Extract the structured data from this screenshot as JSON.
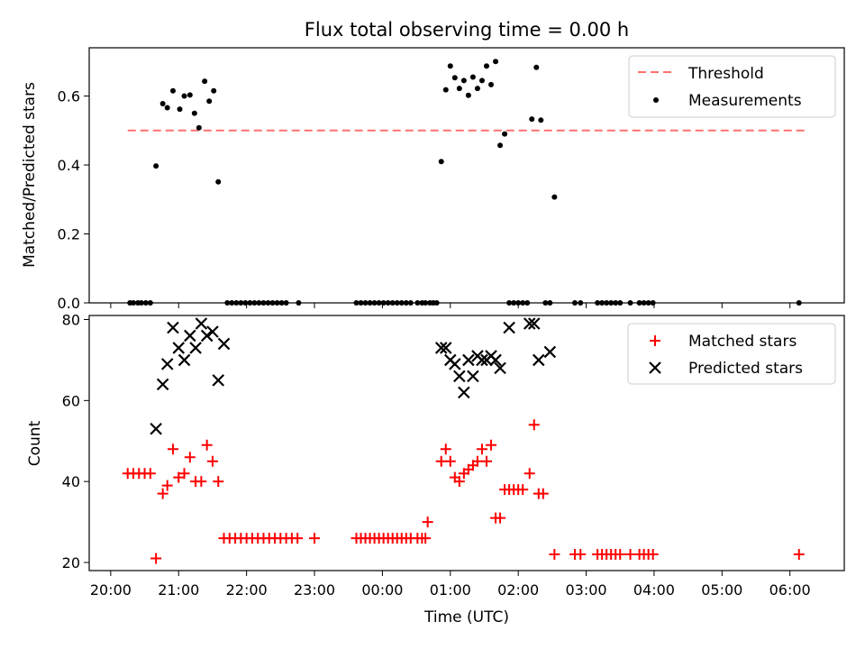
{
  "title": "Flux total observing time = 0.00 h",
  "colors": {
    "matched": "#ff0000",
    "predicted": "#000000",
    "threshold": "#ff7070",
    "measurement": "#000000"
  },
  "chart_data": [
    {
      "type": "scatter",
      "ylabel": "Matched/Predicted stars",
      "ylim": [
        0,
        0.74
      ],
      "yticks": [
        0.0,
        0.2,
        0.4,
        0.6
      ],
      "ytick_labels": [
        "0.0",
        "0.2",
        "0.4",
        "0.6"
      ],
      "xlim": [
        "20:00",
        "06:48"
      ],
      "legend": {
        "placement": "upper right",
        "entries": [
          "Threshold",
          "Measurements"
        ]
      },
      "threshold": {
        "name": "Threshold",
        "y": 0.5,
        "x_start": "20:15",
        "x_end": "06:15"
      },
      "series": [
        {
          "name": "Measurements",
          "points": [
            [
              "20:17",
              0.0
            ],
            [
              "20:20",
              0.0
            ],
            [
              "20:24",
              0.0
            ],
            [
              "20:27",
              0.0
            ],
            [
              "20:31",
              0.0
            ],
            [
              "20:35",
              0.0
            ],
            [
              "20:40",
              0.397
            ],
            [
              "20:46",
              0.578
            ],
            [
              "20:50",
              0.566
            ],
            [
              "20:55",
              0.615
            ],
            [
              "21:01",
              0.562
            ],
            [
              "21:05",
              0.6
            ],
            [
              "21:10",
              0.603
            ],
            [
              "21:14",
              0.55
            ],
            [
              "21:18",
              0.508
            ],
            [
              "21:23",
              0.643
            ],
            [
              "21:27",
              0.585
            ],
            [
              "21:31",
              0.615
            ],
            [
              "21:35",
              0.351
            ],
            [
              "21:43",
              0.0
            ],
            [
              "21:47",
              0.0
            ],
            [
              "21:51",
              0.0
            ],
            [
              "21:55",
              0.0
            ],
            [
              "21:59",
              0.0
            ],
            [
              "22:03",
              0.0
            ],
            [
              "22:07",
              0.0
            ],
            [
              "22:11",
              0.0
            ],
            [
              "22:15",
              0.0
            ],
            [
              "22:19",
              0.0
            ],
            [
              "22:23",
              0.0
            ],
            [
              "22:27",
              0.0
            ],
            [
              "22:31",
              0.0
            ],
            [
              "22:35",
              0.0
            ],
            [
              "22:46",
              0.0
            ],
            [
              "23:37",
              0.0
            ],
            [
              "23:41",
              0.0
            ],
            [
              "23:45",
              0.0
            ],
            [
              "23:49",
              0.0
            ],
            [
              "23:53",
              0.0
            ],
            [
              "23:57",
              0.0
            ],
            [
              "00:01",
              0.0
            ],
            [
              "00:05",
              0.0
            ],
            [
              "00:09",
              0.0
            ],
            [
              "00:13",
              0.0
            ],
            [
              "00:17",
              0.0
            ],
            [
              "00:21",
              0.0
            ],
            [
              "00:25",
              0.0
            ],
            [
              "00:31",
              0.0
            ],
            [
              "00:35",
              0.0
            ],
            [
              "00:38",
              0.0
            ],
            [
              "00:42",
              0.0
            ],
            [
              "00:45",
              0.0
            ],
            [
              "00:48",
              0.0
            ],
            [
              "00:52",
              0.41
            ],
            [
              "00:56",
              0.618
            ],
            [
              "01:00",
              0.687
            ],
            [
              "01:04",
              0.653
            ],
            [
              "01:08",
              0.622
            ],
            [
              "01:12",
              0.645
            ],
            [
              "01:16",
              0.602
            ],
            [
              "01:20",
              0.655
            ],
            [
              "01:24",
              0.622
            ],
            [
              "01:28",
              0.645
            ],
            [
              "01:32",
              0.687
            ],
            [
              "01:36",
              0.633
            ],
            [
              "01:40",
              0.7
            ],
            [
              "01:44",
              0.457
            ],
            [
              "01:48",
              0.49
            ],
            [
              "01:52",
              0.0
            ],
            [
              "01:56",
              0.0
            ],
            [
              "02:00",
              0.0
            ],
            [
              "02:04",
              0.0
            ],
            [
              "02:08",
              0.0
            ],
            [
              "02:12",
              0.533
            ],
            [
              "02:16",
              0.683
            ],
            [
              "02:20",
              0.53
            ],
            [
              "02:24",
              0.0
            ],
            [
              "02:28",
              0.0
            ],
            [
              "02:32",
              0.307
            ],
            [
              "02:50",
              0.0
            ],
            [
              "02:55",
              0.0
            ],
            [
              "03:10",
              0.0
            ],
            [
              "03:14",
              0.0
            ],
            [
              "03:18",
              0.0
            ],
            [
              "03:22",
              0.0
            ],
            [
              "03:26",
              0.0
            ],
            [
              "03:30",
              0.0
            ],
            [
              "03:39",
              0.0
            ],
            [
              "03:47",
              0.0
            ],
            [
              "03:51",
              0.0
            ],
            [
              "03:55",
              0.0
            ],
            [
              "03:59",
              0.0
            ],
            [
              "06:08",
              0.0
            ]
          ]
        }
      ]
    },
    {
      "type": "scatter",
      "xlabel": "Time (UTC)",
      "ylabel": "Count",
      "ylim": [
        18,
        81
      ],
      "yticks": [
        20,
        40,
        60,
        80
      ],
      "ytick_labels": [
        "20",
        "40",
        "60",
        "80"
      ],
      "xlim": [
        "20:00",
        "06:48"
      ],
      "xtick_labels": [
        "20:00",
        "21:00",
        "22:00",
        "23:00",
        "00:00",
        "01:00",
        "02:00",
        "03:00",
        "04:00",
        "05:00",
        "06:00"
      ],
      "legend": {
        "placement": "upper right",
        "entries": [
          "Matched stars",
          "Predicted stars"
        ]
      },
      "series": [
        {
          "name": "Matched stars",
          "marker": "+",
          "points": [
            [
              "20:15",
              42
            ],
            [
              "20:20",
              42
            ],
            [
              "20:25",
              42
            ],
            [
              "20:30",
              42
            ],
            [
              "20:35",
              42
            ],
            [
              "20:40",
              21
            ],
            [
              "20:46",
              37
            ],
            [
              "20:50",
              39
            ],
            [
              "20:55",
              48
            ],
            [
              "21:00",
              41
            ],
            [
              "21:05",
              42
            ],
            [
              "21:10",
              46
            ],
            [
              "21:15",
              40
            ],
            [
              "21:20",
              40
            ],
            [
              "21:25",
              49
            ],
            [
              "21:30",
              45
            ],
            [
              "21:35",
              40
            ],
            [
              "21:40",
              26
            ],
            [
              "21:45",
              26
            ],
            [
              "21:50",
              26
            ],
            [
              "21:55",
              26
            ],
            [
              "22:00",
              26
            ],
            [
              "22:05",
              26
            ],
            [
              "22:10",
              26
            ],
            [
              "22:15",
              26
            ],
            [
              "22:20",
              26
            ],
            [
              "22:25",
              26
            ],
            [
              "22:30",
              26
            ],
            [
              "22:35",
              26
            ],
            [
              "22:40",
              26
            ],
            [
              "22:45",
              26
            ],
            [
              "23:00",
              26
            ],
            [
              "23:37",
              26
            ],
            [
              "23:41",
              26
            ],
            [
              "23:45",
              26
            ],
            [
              "23:49",
              26
            ],
            [
              "23:53",
              26
            ],
            [
              "23:57",
              26
            ],
            [
              "00:01",
              26
            ],
            [
              "00:05",
              26
            ],
            [
              "00:09",
              26
            ],
            [
              "00:13",
              26
            ],
            [
              "00:17",
              26
            ],
            [
              "00:21",
              26
            ],
            [
              "00:25",
              26
            ],
            [
              "00:31",
              26
            ],
            [
              "00:35",
              26
            ],
            [
              "00:38",
              26
            ],
            [
              "00:40",
              30
            ],
            [
              "00:52",
              45
            ],
            [
              "00:56",
              48
            ],
            [
              "01:00",
              45
            ],
            [
              "01:04",
              41
            ],
            [
              "01:08",
              40
            ],
            [
              "01:12",
              42
            ],
            [
              "01:16",
              43
            ],
            [
              "01:20",
              44
            ],
            [
              "01:24",
              45
            ],
            [
              "01:28",
              48
            ],
            [
              "01:32",
              45
            ],
            [
              "01:36",
              49
            ],
            [
              "01:40",
              31
            ],
            [
              "01:44",
              31
            ],
            [
              "01:48",
              38
            ],
            [
              "01:52",
              38
            ],
            [
              "01:56",
              38
            ],
            [
              "02:00",
              38
            ],
            [
              "02:04",
              38
            ],
            [
              "02:10",
              42
            ],
            [
              "02:14",
              54
            ],
            [
              "02:18",
              37
            ],
            [
              "02:22",
              37
            ],
            [
              "02:32",
              22
            ],
            [
              "02:50",
              22
            ],
            [
              "02:55",
              22
            ],
            [
              "03:10",
              22
            ],
            [
              "03:14",
              22
            ],
            [
              "03:18",
              22
            ],
            [
              "03:22",
              22
            ],
            [
              "03:26",
              22
            ],
            [
              "03:30",
              22
            ],
            [
              "03:39",
              22
            ],
            [
              "03:47",
              22
            ],
            [
              "03:51",
              22
            ],
            [
              "03:55",
              22
            ],
            [
              "03:59",
              22
            ],
            [
              "06:08",
              22
            ]
          ]
        },
        {
          "name": "Predicted stars",
          "marker": "x",
          "points": [
            [
              "20:40",
              53
            ],
            [
              "20:46",
              64
            ],
            [
              "20:50",
              69
            ],
            [
              "20:55",
              78
            ],
            [
              "21:00",
              73
            ],
            [
              "21:05",
              70
            ],
            [
              "21:10",
              76
            ],
            [
              "21:15",
              73
            ],
            [
              "21:20",
              79
            ],
            [
              "21:25",
              76
            ],
            [
              "21:30",
              77
            ],
            [
              "21:35",
              65
            ],
            [
              "21:40",
              74
            ],
            [
              "00:52",
              73
            ],
            [
              "00:56",
              73
            ],
            [
              "01:00",
              70
            ],
            [
              "01:04",
              69
            ],
            [
              "01:08",
              66
            ],
            [
              "01:12",
              62
            ],
            [
              "01:16",
              70
            ],
            [
              "01:20",
              66
            ],
            [
              "01:24",
              71
            ],
            [
              "01:28",
              70
            ],
            [
              "01:32",
              70
            ],
            [
              "01:36",
              71
            ],
            [
              "01:40",
              70
            ],
            [
              "01:44",
              68
            ],
            [
              "01:52",
              78
            ],
            [
              "02:10",
              79
            ],
            [
              "02:14",
              79
            ],
            [
              "02:18",
              70
            ],
            [
              "02:28",
              72
            ]
          ]
        }
      ]
    }
  ]
}
